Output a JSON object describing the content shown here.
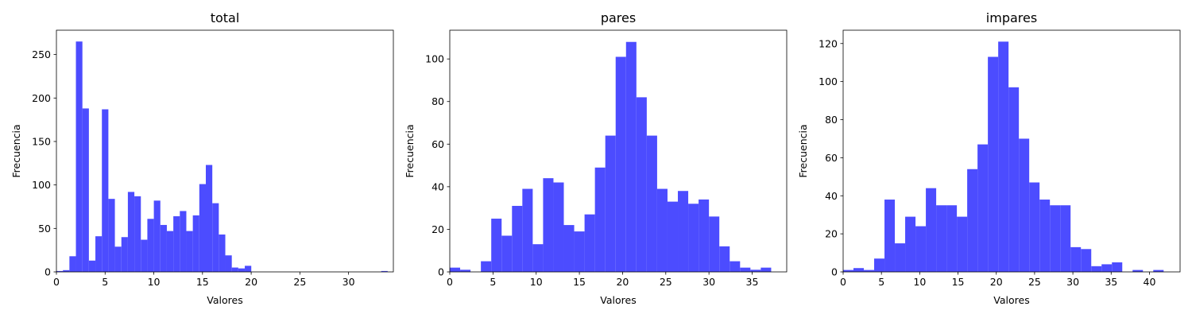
{
  "chart_data": [
    {
      "type": "bar",
      "title": "total",
      "xlabel": "Valores",
      "ylabel": "Frecuencia",
      "xlim": [
        0,
        34.6
      ],
      "ylim": [
        0,
        278
      ],
      "xticks": [
        0,
        5,
        10,
        15,
        20,
        25,
        30
      ],
      "yticks": [
        0,
        50,
        100,
        150,
        200,
        250
      ],
      "bin_start": 0,
      "bin_width": 0.667,
      "values": [
        1,
        2,
        18,
        265,
        188,
        13,
        41,
        187,
        84,
        29,
        40,
        92,
        87,
        37,
        61,
        82,
        54,
        47,
        64,
        70,
        47,
        65,
        101,
        123,
        79,
        43,
        19,
        5,
        4,
        7,
        0,
        0,
        0,
        0,
        0,
        0,
        0,
        0,
        0,
        0,
        0,
        0,
        0,
        0,
        0,
        0,
        0,
        0,
        0,
        0,
        1
      ],
      "color": "#4c4cff"
    },
    {
      "type": "bar",
      "title": "pares",
      "xlabel": "Valores",
      "ylabel": "Frecuencia",
      "xlim": [
        0,
        39
      ],
      "ylim": [
        0,
        113.5
      ],
      "xticks": [
        0,
        5,
        10,
        15,
        20,
        25,
        30,
        35
      ],
      "yticks": [
        0,
        20,
        40,
        60,
        80,
        100
      ],
      "bin_start": 0,
      "bin_width": 1.2,
      "values": [
        2,
        1,
        0,
        5,
        25,
        17,
        31,
        39,
        13,
        44,
        42,
        22,
        19,
        27,
        49,
        64,
        101,
        108,
        82,
        64,
        39,
        33,
        38,
        32,
        34,
        26,
        12,
        5,
        2,
        1,
        2
      ],
      "color": "#4c4cff"
    },
    {
      "type": "bar",
      "title": "impares",
      "xlabel": "Valores",
      "ylabel": "Frecuencia",
      "xlim": [
        0,
        44
      ],
      "ylim": [
        0,
        127
      ],
      "xticks": [
        0,
        5,
        10,
        15,
        20,
        25,
        30,
        35,
        40
      ],
      "yticks": [
        0,
        20,
        40,
        60,
        80,
        100,
        120
      ],
      "bin_start": 0,
      "bin_width": 1.35,
      "values": [
        1,
        2,
        1,
        7,
        38,
        15,
        29,
        24,
        44,
        35,
        35,
        29,
        54,
        67,
        113,
        121,
        97,
        70,
        47,
        38,
        35,
        35,
        13,
        12,
        3,
        4,
        5,
        0,
        1,
        0,
        1
      ],
      "color": "#4c4cff"
    }
  ]
}
